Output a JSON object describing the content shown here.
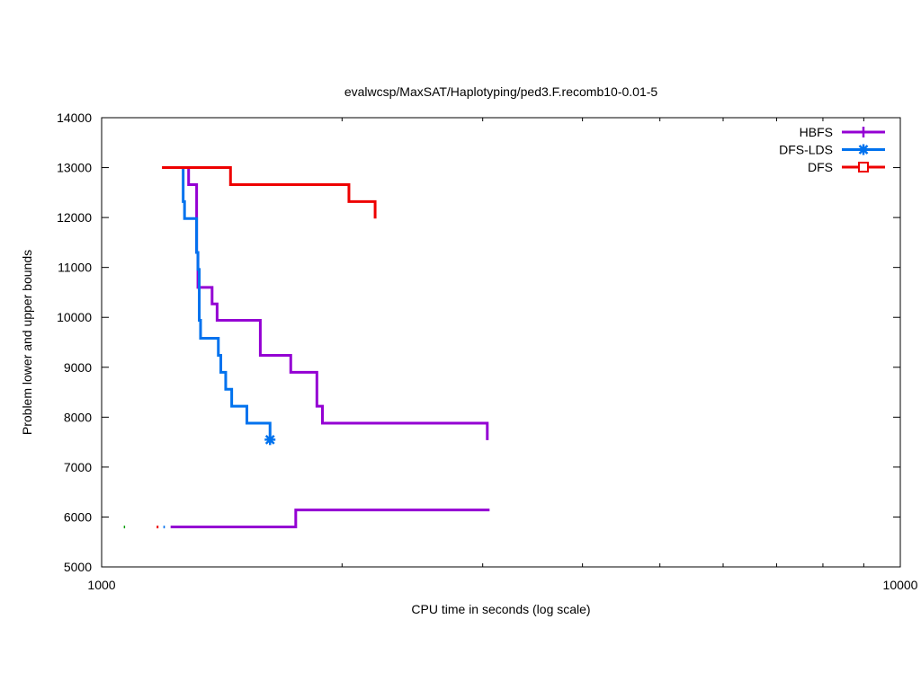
{
  "chart_data": {
    "type": "line",
    "title": "evalwcsp/MaxSAT/Haplotyping/ped3.F.recomb10-0.01-5",
    "xlabel": "CPU time in seconds (log scale)",
    "ylabel": "Problem lower and upper bounds",
    "x_scale": "log",
    "xlim": [
      1000,
      10000
    ],
    "ylim": [
      5000,
      14000
    ],
    "x_ticks": [
      1000,
      10000
    ],
    "x_tick_labels": [
      "1000",
      "10000"
    ],
    "x_minor_ticks": [
      2000,
      3000,
      4000,
      5000,
      6000,
      7000,
      8000,
      9000
    ],
    "y_ticks": [
      5000,
      6000,
      7000,
      8000,
      9000,
      10000,
      11000,
      12000,
      13000,
      14000
    ],
    "y_tick_labels": [
      "5000",
      "6000",
      "7000",
      "8000",
      "9000",
      "10000",
      "11000",
      "12000",
      "13000",
      "14000"
    ],
    "grid": false,
    "legend_position": "top-right",
    "series": [
      {
        "name": "HBFS",
        "color": "#9400d3",
        "marker": "plus",
        "upper": [
          [
            1265,
            13000
          ],
          [
            1285,
            13000
          ],
          [
            1285,
            12660
          ],
          [
            1315,
            12660
          ],
          [
            1315,
            11300
          ],
          [
            1320,
            11300
          ],
          [
            1320,
            10600
          ],
          [
            1375,
            10600
          ],
          [
            1375,
            10270
          ],
          [
            1395,
            10270
          ],
          [
            1395,
            9940
          ],
          [
            1580,
            9940
          ],
          [
            1580,
            9240
          ],
          [
            1725,
            9240
          ],
          [
            1725,
            8900
          ],
          [
            1860,
            8900
          ],
          [
            1860,
            8220
          ],
          [
            1890,
            8220
          ],
          [
            1890,
            7880
          ],
          [
            3040,
            7880
          ],
          [
            3040,
            7540
          ]
        ],
        "lower": [
          [
            1220,
            5800
          ],
          [
            1750,
            5800
          ],
          [
            1750,
            6140
          ],
          [
            3060,
            6140
          ]
        ]
      },
      {
        "name": "DFS-LDS",
        "color": "#0072ee",
        "marker": "star",
        "upper": [
          [
            1245,
            13000
          ],
          [
            1265,
            13000
          ],
          [
            1265,
            12320
          ],
          [
            1270,
            12320
          ],
          [
            1270,
            11980
          ],
          [
            1315,
            11980
          ],
          [
            1315,
            11300
          ],
          [
            1320,
            11300
          ],
          [
            1320,
            10960
          ],
          [
            1325,
            10960
          ],
          [
            1325,
            9940
          ],
          [
            1330,
            9940
          ],
          [
            1330,
            9580
          ],
          [
            1400,
            9580
          ],
          [
            1400,
            9240
          ],
          [
            1410,
            9240
          ],
          [
            1410,
            8900
          ],
          [
            1430,
            8900
          ],
          [
            1430,
            8560
          ],
          [
            1455,
            8560
          ],
          [
            1455,
            8220
          ],
          [
            1520,
            8220
          ],
          [
            1520,
            7880
          ],
          [
            1625,
            7880
          ],
          [
            1625,
            7550
          ]
        ],
        "lower": [
          [
            1195,
            5800
          ],
          [
            1200,
            5800
          ]
        ]
      },
      {
        "name": "DFS",
        "color": "#ee0000",
        "marker": "square",
        "upper": [
          [
            1190,
            13000
          ],
          [
            1450,
            13000
          ],
          [
            1450,
            12660
          ],
          [
            2040,
            12660
          ],
          [
            2040,
            12320
          ],
          [
            2200,
            12320
          ],
          [
            2200,
            11980
          ]
        ],
        "lower": [
          [
            1172,
            5800
          ],
          [
            1178,
            5800
          ]
        ]
      },
      {
        "color": "#009e00",
        "lower": [
          [
            1066,
            5800
          ],
          [
            1070,
            5800
          ]
        ]
      }
    ]
  }
}
